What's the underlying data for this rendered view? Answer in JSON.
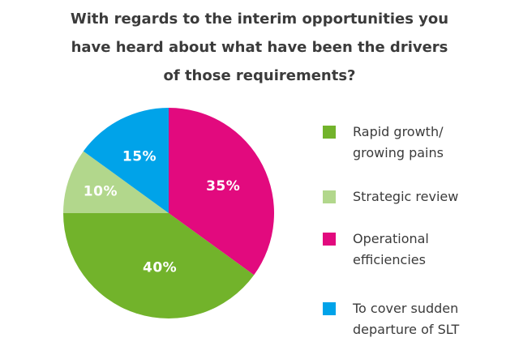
{
  "title": {
    "text": "With regards to the interim opportunities you have heard about what have been the drivers of those requirements?",
    "lines": [
      "With regards to the interim opportunities you",
      "have heard about what have been the drivers",
      "of those requirements?"
    ]
  },
  "colors": {
    "title_text": "#3b3b3b",
    "legend_text": "#3b3b3b",
    "slice_label_text": "#ffffff",
    "background": "#ffffff"
  },
  "chart_data": {
    "type": "pie",
    "title": "With regards to the interim opportunities you have heard about what have been the drivers of those requirements?",
    "series": [
      {
        "label": "Rapid growth/\ngrowing pains",
        "value": 40,
        "pct_label": "40%",
        "color": "#72b32b",
        "label_radius": 0.52,
        "label_offset": [
          10,
          2
        ]
      },
      {
        "label": "Strategic review",
        "value": 10,
        "pct_label": "10%",
        "color": "#b2d78c",
        "label_radius": 0.68,
        "label_offset": [
          0,
          0
        ]
      },
      {
        "label": "Operational\nefficiencies",
        "value": 35,
        "pct_label": "35%",
        "color": "#e20a7e",
        "label_radius": 0.58,
        "label_offset": [
          0,
          0
        ]
      },
      {
        "label": "To cover sudden\ndeparture of SLT",
        "value": 15,
        "pct_label": "15%",
        "color": "#00a3e9",
        "label_radius": 0.61,
        "label_offset": [
          0,
          0
        ]
      }
    ],
    "draw_order": [
      2,
      0,
      1,
      3
    ],
    "start_angle_deg": -90,
    "direction": "clockwise",
    "legend_position": "right",
    "grid": false
  }
}
